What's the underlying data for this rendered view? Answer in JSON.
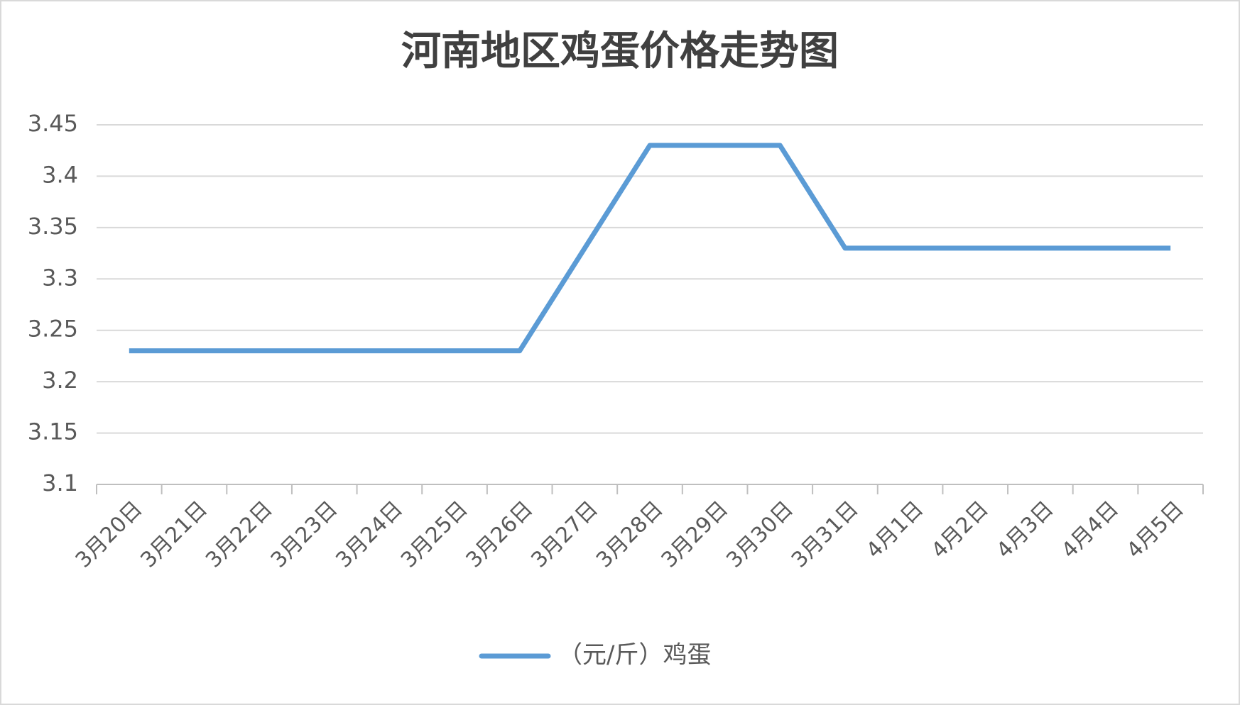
{
  "chart_data": {
    "type": "line",
    "title": "河南地区鸡蛋价格走势图",
    "categories": [
      "3月20日",
      "3月21日",
      "3月22日",
      "3月23日",
      "3月24日",
      "3月25日",
      "3月26日",
      "3月27日",
      "3月28日",
      "3月29日",
      "3月30日",
      "3月31日",
      "4月1日",
      "4月2日",
      "4月3日",
      "4月4日",
      "4月5日"
    ],
    "series": [
      {
        "name": "（元/斤）鸡蛋",
        "color": "#5b9bd5",
        "values": [
          3.23,
          3.23,
          3.23,
          3.23,
          3.23,
          3.23,
          3.23,
          3.33,
          3.43,
          3.43,
          3.43,
          3.33,
          3.33,
          3.33,
          3.33,
          3.33,
          3.33
        ]
      }
    ],
    "ylim": [
      3.1,
      3.45
    ],
    "yticks": [
      3.1,
      3.15,
      3.2,
      3.25,
      3.3,
      3.35,
      3.4,
      3.45
    ],
    "grid": true,
    "legend": "bottom"
  }
}
